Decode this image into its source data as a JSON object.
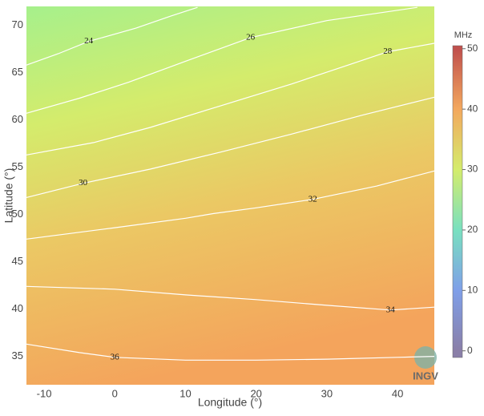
{
  "chart_data": {
    "type": "contour",
    "xlabel": "Longitude (°)",
    "ylabel": "Latitude (°)",
    "xlim": [
      -12.5,
      45.2
    ],
    "ylim": [
      32,
      72
    ],
    "xticks": [
      -10,
      0,
      10,
      20,
      30,
      40
    ],
    "yticks": [
      35,
      40,
      45,
      50,
      55,
      60,
      65,
      70
    ],
    "grid": false,
    "colorbar_title": "MHz",
    "clim": [
      -1.1,
      50.5
    ],
    "cticks": [
      0,
      10,
      20,
      30,
      40,
      50
    ],
    "colorscale": [
      [
        0,
        "#8a7fa8"
      ],
      [
        10,
        "#7f9fe8"
      ],
      [
        20,
        "#79e0c0"
      ],
      [
        30,
        "#d4ec6c"
      ],
      [
        40,
        "#f3a85e"
      ],
      [
        50,
        "#c0504d"
      ]
    ],
    "contour_color": "#ffffff",
    "contours": [
      {
        "level": 24,
        "x": [
          -12.5,
          -8,
          -3.7,
          3,
          8,
          11.7
        ],
        "y": [
          65.8,
          67,
          68.3,
          69.7,
          71,
          71.9
        ]
      },
      {
        "level": 26,
        "x": [
          -12.5,
          -5,
          2,
          10,
          19.2,
          30,
          42.8
        ],
        "y": [
          60.7,
          62.3,
          64,
          66.2,
          68.7,
          70.5,
          71.9
        ]
      },
      {
        "level": 28,
        "x": [
          -12.5,
          -3,
          5,
          15,
          25,
          33,
          38.6,
          45.2
        ],
        "y": [
          56.3,
          57.6,
          59.2,
          61.5,
          63.8,
          65.8,
          67.2,
          68.1
        ]
      },
      {
        "level": 30,
        "x": [
          -12.5,
          -4.5,
          5,
          15,
          25,
          35,
          45.2
        ],
        "y": [
          51.8,
          53.3,
          54.8,
          56.6,
          58.5,
          60.5,
          62.4
        ]
      },
      {
        "level": 32,
        "x": [
          -12.5,
          0,
          10,
          14,
          20,
          28,
          37,
          45.2
        ],
        "y": [
          47.4,
          48.6,
          49.6,
          50.1,
          50.7,
          51.6,
          53,
          54.6
        ]
      },
      {
        "level": 34,
        "x": [
          -12.5,
          0,
          10,
          20,
          30,
          39,
          45.2
        ],
        "y": [
          42.4,
          42.1,
          41.5,
          41,
          40.4,
          39.9,
          40.2
        ]
      },
      {
        "level": 36,
        "x": [
          -12.5,
          -5,
          0,
          10,
          20,
          30,
          40,
          45.2
        ],
        "y": [
          36.3,
          35.4,
          34.9,
          34.6,
          34.6,
          34.7,
          34.9,
          35.0
        ]
      }
    ],
    "logo_text": "INGV"
  }
}
